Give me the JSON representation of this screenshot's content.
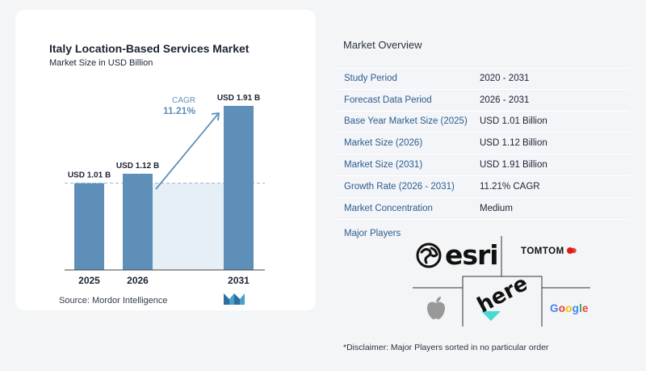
{
  "chart_data": {
    "type": "bar",
    "title": "Italy Location-Based Services Market",
    "subtitle": "Market Size in USD Billion",
    "categories": [
      "2025",
      "2026",
      "2031"
    ],
    "values": [
      1.01,
      1.12,
      1.91
    ],
    "data_labels": [
      "USD 1.01 B",
      "USD 1.12 B",
      "USD 1.91 B"
    ],
    "ylim": [
      0,
      1.91
    ],
    "xlabel": "",
    "ylabel": "",
    "cagr_label": "CAGR",
    "cagr_value": "11.21%",
    "reference_line": 1.01,
    "grid": false,
    "colors": {
      "bar": "#5e8fb8",
      "band": "#e6eef6",
      "arrow": "#5e8fb8",
      "cagr": "#5e8fb8",
      "dashed": "#9bb3cc"
    }
  },
  "source": "Source:  Mordor Intelligence",
  "overview": {
    "title": "Market Overview",
    "rows": [
      {
        "label": "Study Period",
        "value": "2020 - 2031"
      },
      {
        "label": "Forecast Data Period",
        "value": "2026 - 2031"
      },
      {
        "label": "Base Year Market Size (2025)",
        "value": "USD 1.01 Billion"
      },
      {
        "label": "Market Size (2026)",
        "value": "USD 1.12 Billion"
      },
      {
        "label": "Market Size (2031)",
        "value": "USD 1.91 Billion"
      },
      {
        "label": "Growth Rate (2026 - 2031)",
        "value": "11.21% CAGR"
      },
      {
        "label": "Market Concentration",
        "value": "Medium"
      }
    ]
  },
  "players": {
    "title": "Major Players",
    "logos": [
      "esri",
      "TOMTOM",
      "Apple",
      "here",
      "Google"
    ]
  },
  "disclaimer": "*Disclaimer: Major Players sorted in no particular order"
}
